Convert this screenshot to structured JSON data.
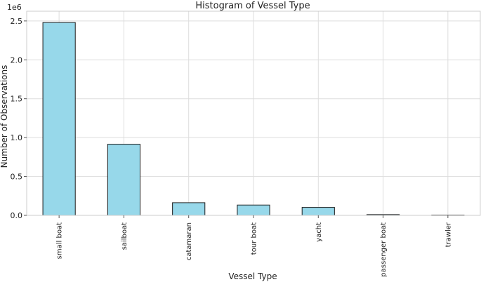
{
  "chart_data": {
    "type": "bar",
    "title": "Histogram of Vessel Type",
    "xlabel": "Vessel Type",
    "ylabel": "Number of Observations",
    "y_offset_label": "1e6",
    "categories": [
      "small boat",
      "sailboat",
      "catamaran",
      "tour boat",
      "yacht",
      "passenger boat",
      "trawler"
    ],
    "values": [
      2480000,
      915000,
      163000,
      133000,
      103000,
      10000,
      4000
    ],
    "ylim": [
      0,
      2625000
    ],
    "yticks": [
      0,
      500000,
      1000000,
      1500000,
      2000000,
      2500000
    ],
    "ytick_labels": [
      "0.0",
      "0.5",
      "1.0",
      "1.5",
      "2.0",
      "2.5"
    ],
    "grid": true,
    "bar_color": "#97d8ea",
    "edge_color": "#1a1a1a"
  }
}
